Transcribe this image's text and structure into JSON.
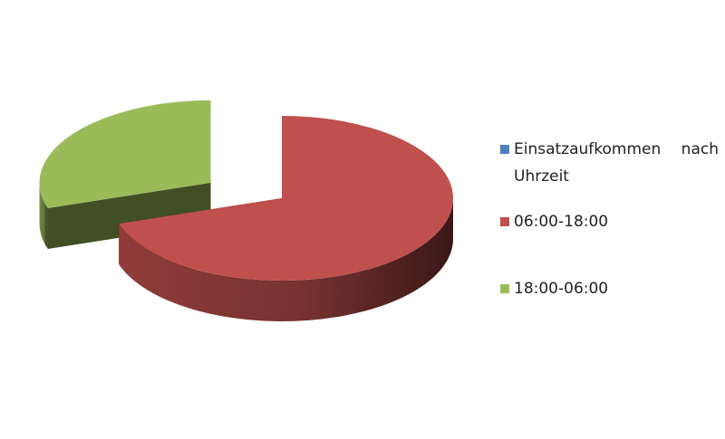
{
  "chart_data": {
    "type": "pie",
    "series_name": "Einsatzaufkommen nach Uhrzeit",
    "series_color": "#4f81bd",
    "categories": [
      "06:00-18:00",
      "18:00-06:00"
    ],
    "values": [
      70,
      30
    ],
    "colors": [
      "#c0504d",
      "#9bbb59"
    ],
    "legend": "right"
  }
}
